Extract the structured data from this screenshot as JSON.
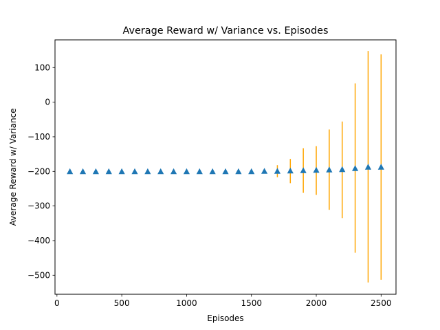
{
  "chart_data": {
    "type": "scatter",
    "title": "Average Reward w/ Variance vs. Episodes",
    "xlabel": "Episodes",
    "ylabel": "Average Reward w/ Variance",
    "xlim": [
      -15,
      2615
    ],
    "ylim": [
      -555,
      180
    ],
    "xticks": [
      0,
      500,
      1000,
      1500,
      2000,
      2500
    ],
    "yticks": [
      100,
      0,
      -100,
      -200,
      -300,
      -400,
      -500
    ],
    "xtick_labels": [
      "0",
      "500",
      "1000",
      "1500",
      "2000",
      "2500"
    ],
    "ytick_labels": [
      "100",
      "0",
      "−100",
      "−200",
      "−300",
      "−400",
      "−500"
    ],
    "grid": false,
    "marker": "triangle-up",
    "marker_color": "#1f77b4",
    "errorbar_color": "#ffa500",
    "series": [
      {
        "x": [
          100,
          200,
          300,
          400,
          500,
          600,
          700,
          800,
          900,
          1000,
          1100,
          1200,
          1300,
          1400,
          1500,
          1600,
          1700,
          1800,
          1900,
          2000,
          2100,
          2200,
          2300,
          2400,
          2500
        ],
        "y": [
          -201,
          -201,
          -201,
          -201,
          -201,
          -201,
          -201,
          -201,
          -201,
          -201,
          -201,
          -201,
          -201,
          -201,
          -201,
          -200,
          -200,
          -199,
          -198,
          -197,
          -196,
          -195,
          -192,
          -188,
          -188
        ],
        "yerr_low": [
          -201,
          -201,
          -201,
          -201,
          -201,
          -201,
          -201,
          -201,
          -201,
          -201,
          -201,
          -201,
          -201,
          -201,
          -201,
          -202,
          -217,
          -234,
          -262,
          -268,
          -311,
          -335,
          -435,
          -521,
          -513
        ],
        "yerr_high": [
          -201,
          -201,
          -201,
          -201,
          -201,
          -201,
          -201,
          -201,
          -201,
          -201,
          -201,
          -201,
          -201,
          -201,
          -201,
          -197,
          -182,
          -164,
          -133,
          -127,
          -79,
          -56,
          54,
          148,
          138
        ]
      }
    ]
  }
}
